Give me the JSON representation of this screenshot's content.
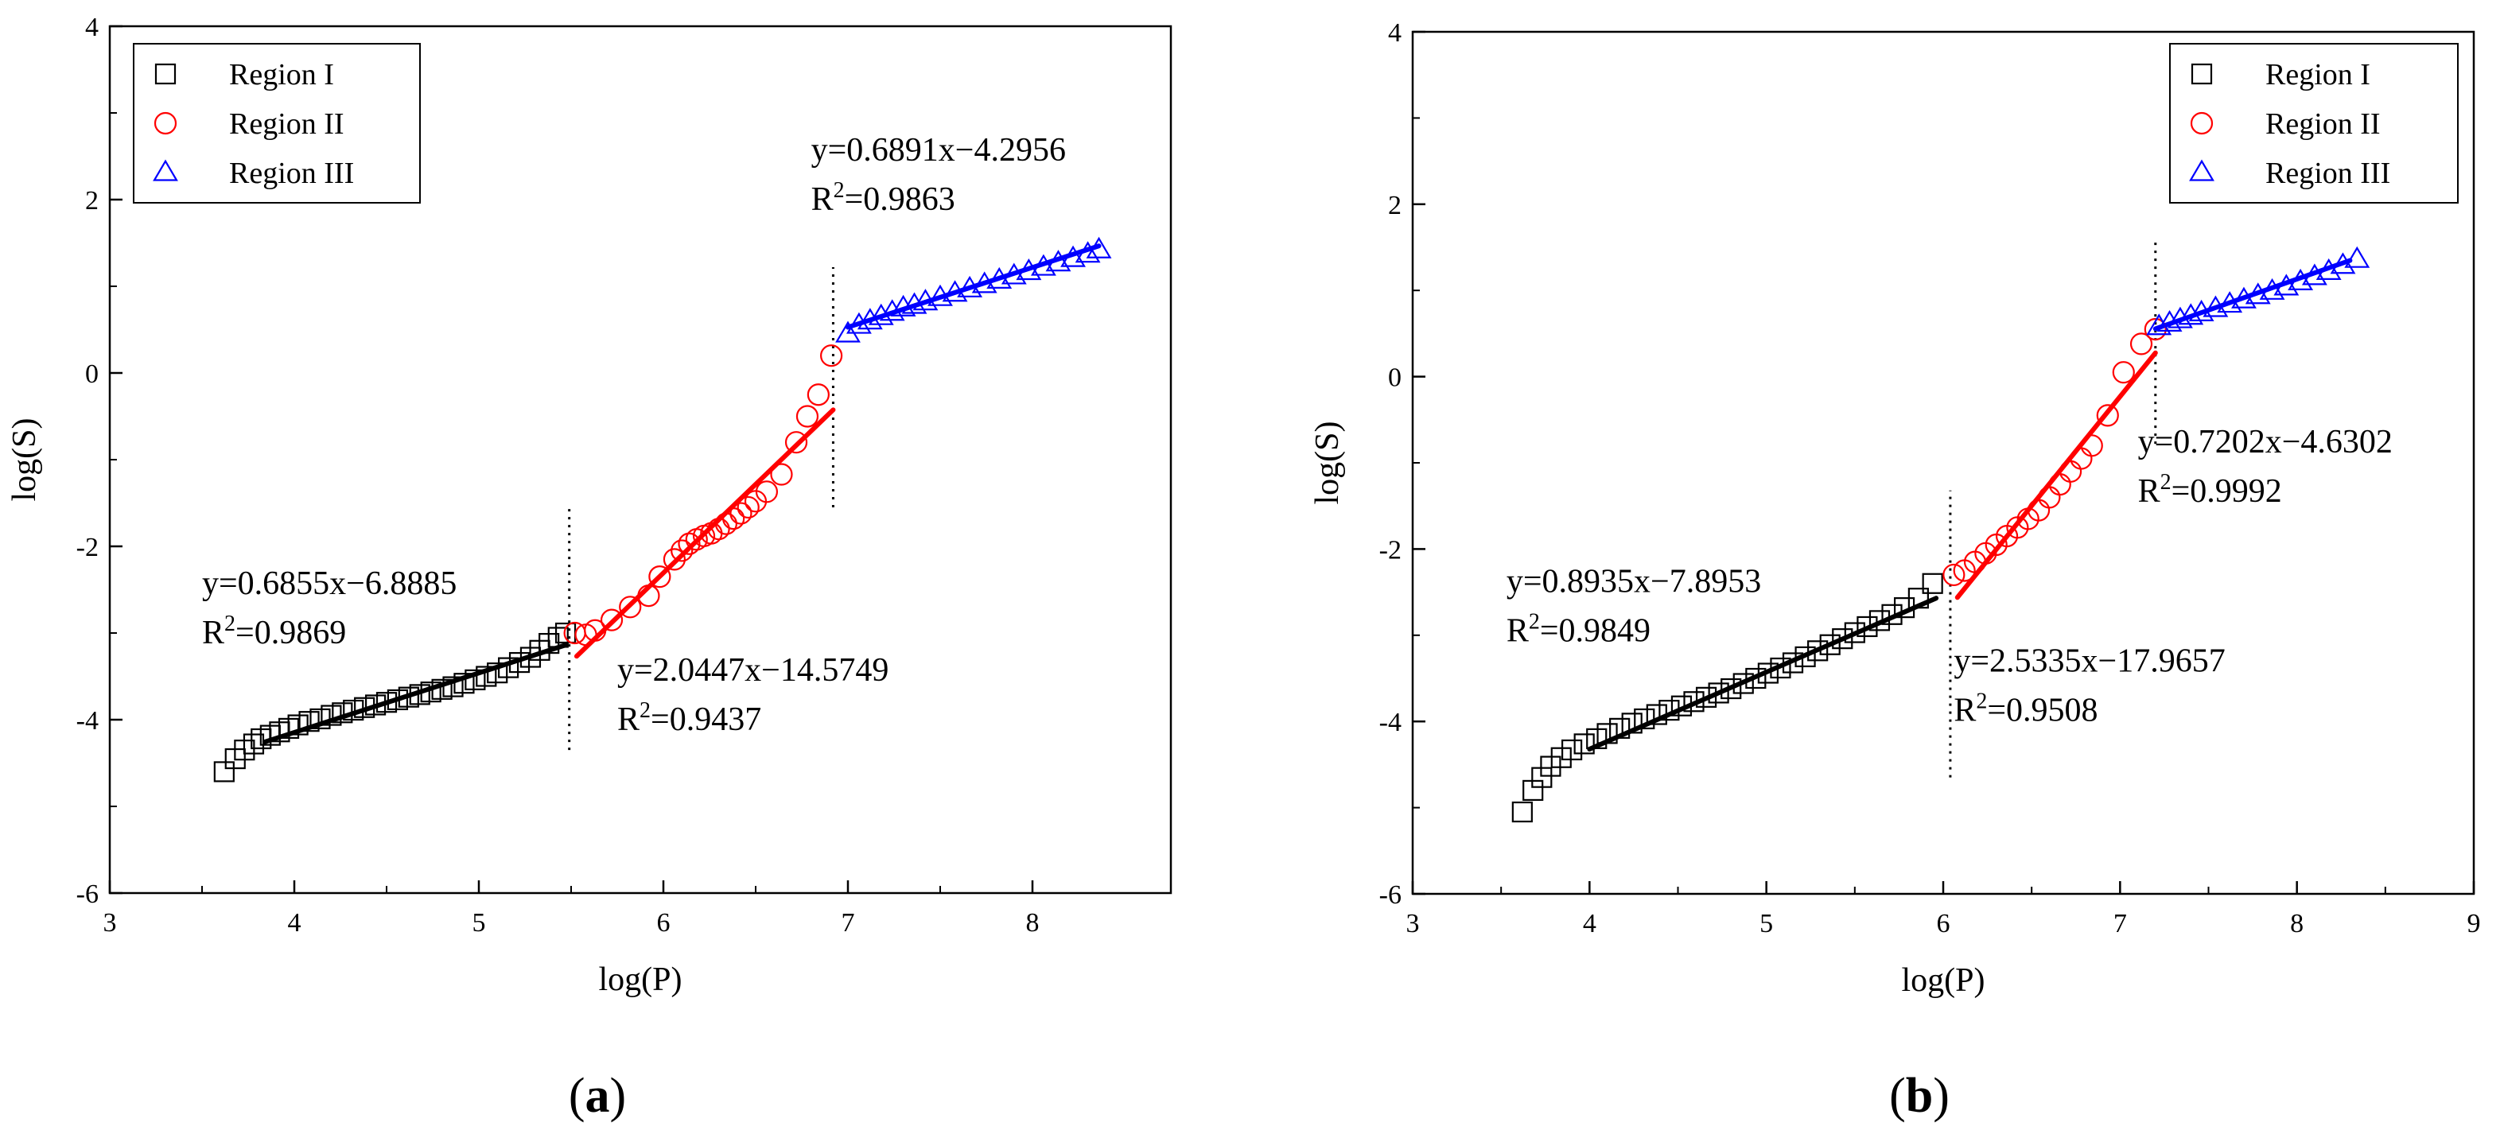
{
  "chart_data": [
    {
      "type": "scatter",
      "panel_label": {
        "open": "(",
        "letter": "a",
        "close": ")"
      },
      "xlabel": "log(P)",
      "ylabel": "log(S)",
      "xlim": [
        3,
        8.75
      ],
      "ylim": [
        -6,
        4
      ],
      "xticks": [
        3,
        4,
        5,
        6,
        7,
        8
      ],
      "yticks": [
        -6,
        -4,
        -2,
        0,
        2,
        4
      ],
      "legend": {
        "position": "top-left",
        "entries": [
          {
            "label": "Region I",
            "marker": "square",
            "color": "#000000"
          },
          {
            "label": "Region II",
            "marker": "circle",
            "color": "#ff0000"
          },
          {
            "label": "Region III",
            "marker": "triangle",
            "color": "#0000ff"
          }
        ]
      },
      "series": [
        {
          "name": "Region I",
          "marker": "square",
          "color": "#000000",
          "x": [
            3.62,
            3.68,
            3.73,
            3.78,
            3.82,
            3.87,
            3.92,
            3.97,
            4.02,
            4.08,
            4.14,
            4.2,
            4.26,
            4.32,
            4.38,
            4.44,
            4.5,
            4.56,
            4.62,
            4.68,
            4.74,
            4.8,
            4.86,
            4.92,
            4.98,
            5.04,
            5.1,
            5.16,
            5.22,
            5.28,
            5.33,
            5.38,
            5.43,
            5.47
          ],
          "y": [
            -4.6,
            -4.45,
            -4.35,
            -4.28,
            -4.22,
            -4.18,
            -4.14,
            -4.1,
            -4.06,
            -4.02,
            -3.99,
            -3.95,
            -3.92,
            -3.89,
            -3.86,
            -3.83,
            -3.8,
            -3.77,
            -3.74,
            -3.71,
            -3.68,
            -3.65,
            -3.62,
            -3.58,
            -3.54,
            -3.5,
            -3.46,
            -3.4,
            -3.34,
            -3.28,
            -3.2,
            -3.12,
            -3.05,
            -3.0
          ]
        },
        {
          "name": "Region II",
          "marker": "circle",
          "color": "#ff0000",
          "x": [
            5.52,
            5.58,
            5.63,
            5.72,
            5.82,
            5.92,
            5.98,
            6.06,
            6.1,
            6.14,
            6.18,
            6.22,
            6.26,
            6.3,
            6.34,
            6.38,
            6.42,
            6.46,
            6.5,
            6.56,
            6.64,
            6.72,
            6.78,
            6.84,
            6.91
          ],
          "y": [
            -3.0,
            -3.02,
            -2.97,
            -2.85,
            -2.7,
            -2.57,
            -2.35,
            -2.15,
            -2.05,
            -1.97,
            -1.92,
            -1.88,
            -1.85,
            -1.8,
            -1.74,
            -1.68,
            -1.62,
            -1.55,
            -1.48,
            -1.37,
            -1.17,
            -0.8,
            -0.5,
            -0.25,
            0.2
          ]
        },
        {
          "name": "Region III",
          "marker": "triangle",
          "color": "#0000ff",
          "x": [
            7.0,
            7.06,
            7.12,
            7.18,
            7.24,
            7.3,
            7.36,
            7.42,
            7.5,
            7.58,
            7.66,
            7.74,
            7.82,
            7.9,
            7.98,
            8.06,
            8.14,
            8.22,
            8.3,
            8.36
          ],
          "y": [
            0.45,
            0.55,
            0.6,
            0.65,
            0.7,
            0.75,
            0.78,
            0.82,
            0.87,
            0.92,
            0.97,
            1.02,
            1.07,
            1.12,
            1.17,
            1.22,
            1.27,
            1.32,
            1.37,
            1.42
          ]
        }
      ],
      "fits": [
        {
          "name": "Region I fit",
          "color": "#000000",
          "slope": 0.6855,
          "intercept": -6.8885,
          "x_range": [
            3.84,
            5.47
          ]
        },
        {
          "name": "Region II fit",
          "color": "#ff0000",
          "slope": 2.0447,
          "intercept": -14.5749,
          "x_range": [
            5.53,
            6.92
          ]
        },
        {
          "name": "Region III fit",
          "color": "#0000ff",
          "slope": 0.6891,
          "intercept": -4.2956,
          "x_range": [
            7.0,
            8.36
          ]
        }
      ],
      "dividers": [
        {
          "x": 5.49,
          "y_range": [
            -4.35,
            -1.55
          ]
        },
        {
          "x": 6.92,
          "y_range": [
            -1.55,
            1.22
          ]
        }
      ],
      "annotations": [
        {
          "equation": "y=0.6855x−6.8885",
          "r2_prefix": "R",
          "r2_sup": "2",
          "r2_value": "=0.9869",
          "anchor_x": 3.5,
          "anchor_y": -2.55
        },
        {
          "equation": "y=2.0447x−14.5749",
          "r2_prefix": "R",
          "r2_sup": "2",
          "r2_value": "=0.9437",
          "anchor_x": 5.75,
          "anchor_y": -3.55
        },
        {
          "equation": "y=0.6891x−4.2956",
          "r2_prefix": "R",
          "r2_sup": "2",
          "r2_value": "=0.9863",
          "anchor_x": 6.8,
          "anchor_y": 2.45
        }
      ]
    },
    {
      "type": "scatter",
      "panel_label": {
        "open": "(",
        "letter": "b",
        "close": ")"
      },
      "xlabel": "log(P)",
      "ylabel": "log(S)",
      "xlim": [
        3,
        9
      ],
      "ylim": [
        -6,
        4
      ],
      "xticks": [
        3,
        4,
        5,
        6,
        7,
        8,
        9
      ],
      "yticks": [
        -6,
        -4,
        -2,
        0,
        2,
        4
      ],
      "legend": {
        "position": "top-right",
        "entries": [
          {
            "label": "Region I",
            "marker": "square",
            "color": "#000000"
          },
          {
            "label": "Region II",
            "marker": "circle",
            "color": "#ff0000"
          },
          {
            "label": "Region III",
            "marker": "triangle",
            "color": "#0000ff"
          }
        ]
      },
      "series": [
        {
          "name": "Region I",
          "marker": "square",
          "color": "#000000",
          "x": [
            3.62,
            3.68,
            3.73,
            3.78,
            3.84,
            3.9,
            3.97,
            4.04,
            4.1,
            4.17,
            4.24,
            4.31,
            4.38,
            4.45,
            4.52,
            4.59,
            4.66,
            4.73,
            4.8,
            4.87,
            4.94,
            5.01,
            5.08,
            5.15,
            5.22,
            5.29,
            5.36,
            5.43,
            5.5,
            5.57,
            5.64,
            5.71,
            5.78,
            5.86,
            5.94
          ],
          "y": [
            -5.05,
            -4.8,
            -4.65,
            -4.52,
            -4.42,
            -4.33,
            -4.26,
            -4.2,
            -4.14,
            -4.08,
            -4.02,
            -3.97,
            -3.92,
            -3.87,
            -3.82,
            -3.77,
            -3.72,
            -3.67,
            -3.62,
            -3.56,
            -3.5,
            -3.44,
            -3.38,
            -3.32,
            -3.25,
            -3.18,
            -3.11,
            -3.04,
            -2.97,
            -2.9,
            -2.83,
            -2.76,
            -2.68,
            -2.57,
            -2.4
          ]
        },
        {
          "name": "Region II",
          "marker": "circle",
          "color": "#ff0000",
          "x": [
            6.06,
            6.12,
            6.18,
            6.24,
            6.3,
            6.36,
            6.42,
            6.48,
            6.54,
            6.6,
            6.66,
            6.72,
            6.78,
            6.84,
            6.93,
            7.02,
            7.12,
            7.2
          ],
          "y": [
            -2.3,
            -2.25,
            -2.15,
            -2.05,
            -1.95,
            -1.85,
            -1.75,
            -1.65,
            -1.55,
            -1.4,
            -1.25,
            -1.1,
            -0.95,
            -0.8,
            -0.45,
            0.05,
            0.38,
            0.55
          ]
        },
        {
          "name": "Region III",
          "marker": "triangle",
          "color": "#0000ff",
          "x": [
            7.22,
            7.28,
            7.34,
            7.4,
            7.46,
            7.54,
            7.62,
            7.7,
            7.78,
            7.86,
            7.94,
            8.02,
            8.1,
            8.18,
            8.26,
            8.34
          ],
          "y": [
            0.58,
            0.62,
            0.66,
            0.7,
            0.74,
            0.79,
            0.84,
            0.89,
            0.94,
            0.99,
            1.04,
            1.1,
            1.16,
            1.22,
            1.29,
            1.36
          ]
        }
      ],
      "fits": [
        {
          "name": "Region I fit",
          "color": "#000000",
          "slope": 0.8935,
          "intercept": -7.8953,
          "x_range": [
            4.0,
            5.96
          ]
        },
        {
          "name": "Region II fit",
          "color": "#ff0000",
          "slope": 2.5335,
          "intercept": -17.9657,
          "x_range": [
            6.08,
            7.2
          ]
        },
        {
          "name": "Region III fit",
          "color": "#0000ff",
          "slope": 0.7202,
          "intercept": -4.6302,
          "x_range": [
            7.2,
            8.3
          ]
        }
      ],
      "dividers": [
        {
          "x": 6.04,
          "y_range": [
            -4.65,
            -1.32
          ]
        },
        {
          "x": 7.2,
          "y_range": [
            -0.78,
            1.6
          ]
        }
      ],
      "annotations": [
        {
          "equation": "y=0.8935x−7.8953",
          "r2_prefix": "R",
          "r2_sup": "2",
          "r2_value": "=0.9849",
          "anchor_x": 3.53,
          "anchor_y": -2.5
        },
        {
          "equation": "y=2.5335x−17.9657",
          "r2_prefix": "R",
          "r2_sup": "2",
          "r2_value": "=0.9508",
          "anchor_x": 6.06,
          "anchor_y": -3.42
        },
        {
          "equation": "y=0.7202x−4.6302",
          "r2_prefix": "R",
          "r2_sup": "2",
          "r2_value": "=0.9992",
          "anchor_x": 7.1,
          "anchor_y": -0.88
        }
      ]
    }
  ]
}
